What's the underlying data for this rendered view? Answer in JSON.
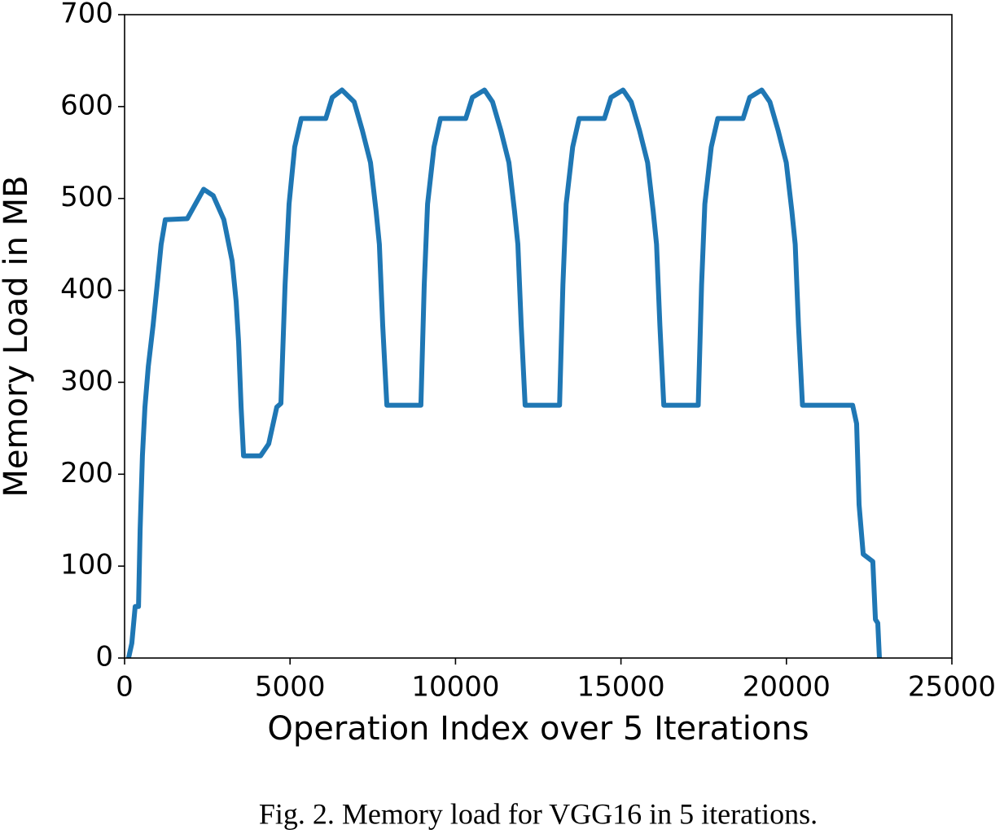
{
  "chart_data": {
    "type": "line",
    "xlabel": "Operation Index over 5 Iterations",
    "ylabel": "Memory Load in MB",
    "caption": "Fig. 2.  Memory load for VGG16 in 5 iterations.",
    "color": "#1f77b4",
    "x": [
      120,
      220,
      320,
      420,
      470,
      540,
      615,
      715,
      860,
      985,
      1105,
      1230,
      1895,
      2140,
      2390,
      2680,
      3000,
      3250,
      3370,
      3445,
      3520,
      3595,
      4110,
      4355,
      4600,
      4725,
      4850,
      4970,
      5140,
      5340,
      6080,
      6275,
      6570,
      6940,
      7185,
      7430,
      7600,
      7700,
      7800,
      7925,
      8955,
      9055,
      9155,
      9350,
      9545,
      10310,
      10510,
      10875,
      11120,
      11370,
      11615,
      11785,
      11885,
      11985,
      12105,
      13145,
      13245,
      13345,
      13540,
      13735,
      14500,
      14700,
      15065,
      15310,
      15560,
      15805,
      15975,
      16075,
      16175,
      16295,
      17335,
      17435,
      17535,
      17730,
      17925,
      18690,
      18890,
      19255,
      19500,
      19750,
      19995,
      20165,
      20265,
      20365,
      20485,
      22000,
      22120,
      22195,
      22320,
      22610,
      22690,
      22760,
      22810
    ],
    "values": [
      0,
      16,
      56,
      56,
      140,
      220,
      273,
      317,
      362,
      406,
      450,
      477,
      478,
      494,
      510,
      503,
      477,
      432,
      388,
      344,
      273,
      220,
      220,
      233,
      273,
      277,
      406,
      494,
      556,
      587,
      587,
      610,
      618,
      605,
      574,
      539,
      486,
      450,
      362,
      275,
      275,
      406,
      494,
      556,
      587,
      587,
      610,
      618,
      605,
      574,
      539,
      486,
      450,
      362,
      275,
      275,
      406,
      494,
      556,
      587,
      587,
      610,
      618,
      605,
      574,
      539,
      486,
      450,
      362,
      275,
      275,
      406,
      494,
      556,
      587,
      587,
      610,
      618,
      605,
      574,
      539,
      486,
      450,
      362,
      275,
      275,
      255,
      167,
      113,
      105,
      42,
      38,
      0
    ],
    "xlim": [
      0,
      25000
    ],
    "xticks": [
      0,
      5000,
      10000,
      15000,
      20000,
      25000
    ],
    "ylim": [
      0,
      700
    ],
    "yticks": [
      0,
      100,
      200,
      300,
      400,
      500,
      600,
      700
    ],
    "grid": false
  }
}
